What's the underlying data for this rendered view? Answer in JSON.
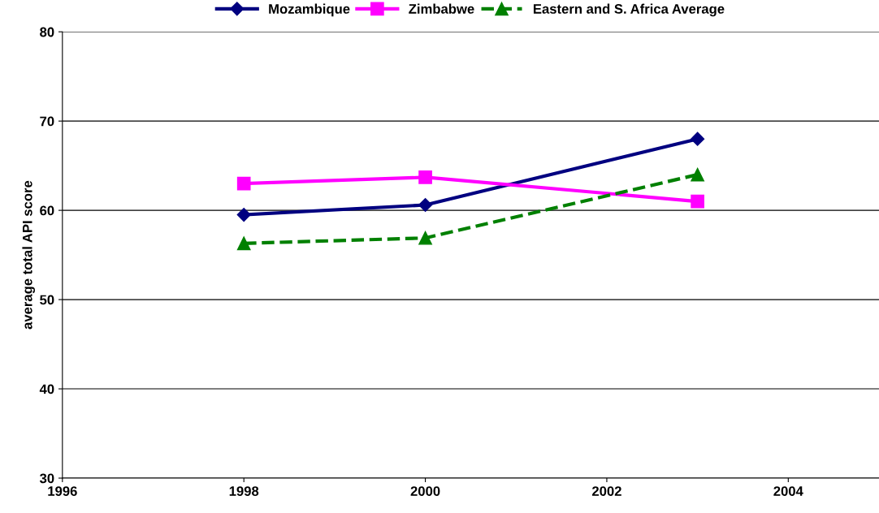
{
  "chart_data": {
    "type": "line",
    "ylabel": "average total API score",
    "x": [
      1998,
      2000,
      2003
    ],
    "series": [
      {
        "name": "Mozambique",
        "color": "#000080",
        "values": [
          59.5,
          60.6,
          68.0
        ],
        "marker": "diamond",
        "line_style": "solid"
      },
      {
        "name": "Zimbabwe",
        "color": "#ff00ff",
        "values": [
          63.0,
          63.7,
          61.0
        ],
        "marker": "square",
        "line_style": "solid"
      },
      {
        "name": "Eastern and S. Africa Average",
        "color": "#008000",
        "values": [
          56.3,
          56.9,
          64.0
        ],
        "marker": "triangle",
        "line_style": "dashed"
      }
    ],
    "xlim": [
      1996,
      2005
    ],
    "xticks": [
      1996,
      1998,
      2000,
      2002,
      2004
    ],
    "ylim": [
      30,
      80
    ],
    "yticks": [
      30,
      40,
      50,
      60,
      70,
      80
    ],
    "grid": "y",
    "legend": "top"
  }
}
